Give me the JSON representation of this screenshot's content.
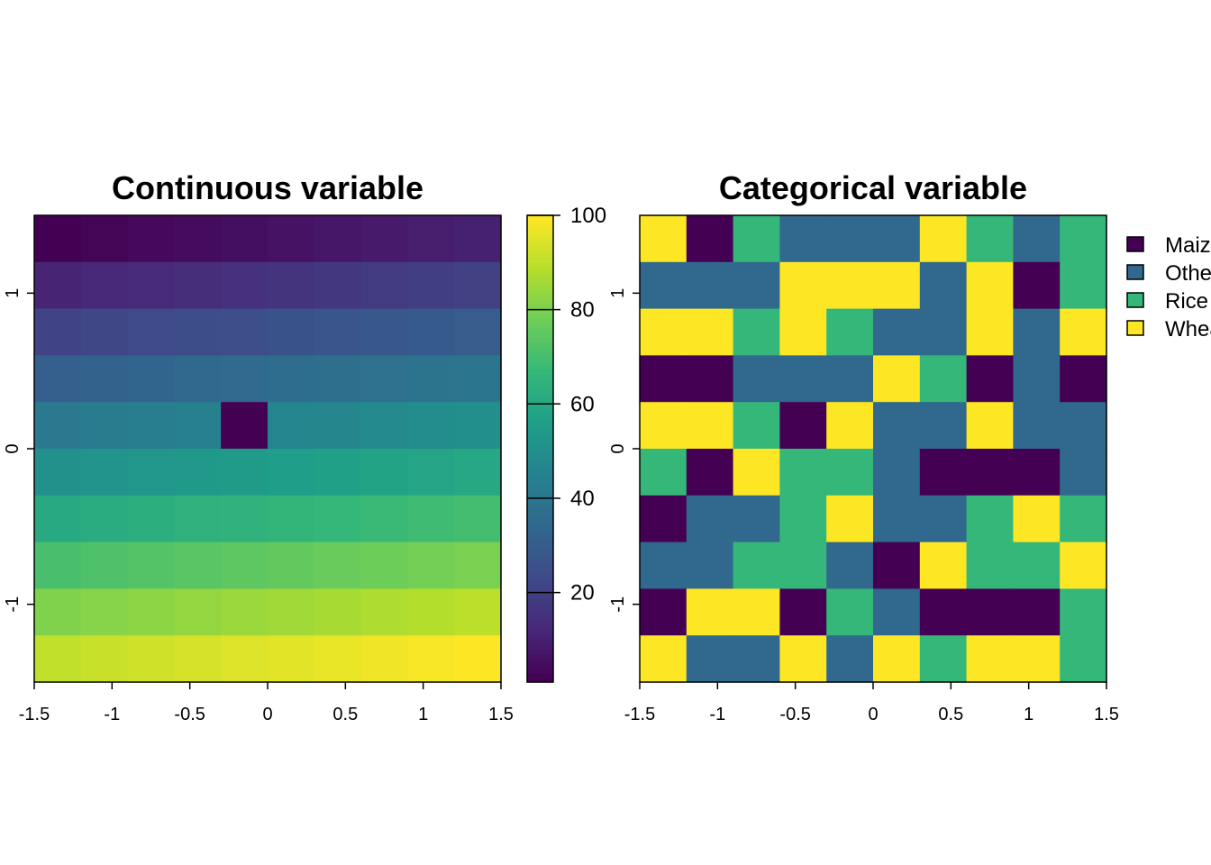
{
  "chart_data": [
    {
      "type": "heatmap",
      "title": "Continuous variable",
      "xlim": [
        -1.5,
        1.5
      ],
      "ylim": [
        -1.5,
        1.5
      ],
      "xticks": [
        "-1.5",
        "-1",
        "-0.5",
        "0",
        "0.5",
        "1",
        "1.5"
      ],
      "yticks": [
        "-1",
        "0",
        "1"
      ],
      "colorscale": "viridis",
      "color_range": [
        1,
        100
      ],
      "colorbar_ticks": [
        "20",
        "40",
        "60",
        "80",
        "100"
      ],
      "rows_top_to_bottom": [
        [
          1,
          2,
          3,
          4,
          5,
          6,
          7,
          8,
          9,
          10
        ],
        [
          11,
          12,
          13,
          14,
          15,
          16,
          17,
          18,
          19,
          20
        ],
        [
          21,
          22,
          23,
          24,
          25,
          26,
          27,
          28,
          29,
          30
        ],
        [
          31,
          32,
          33,
          34,
          35,
          36,
          37,
          38,
          39,
          40
        ],
        [
          41,
          42,
          43,
          44,
          1,
          46,
          47,
          48,
          49,
          50
        ],
        [
          51,
          52,
          53,
          54,
          55,
          56,
          57,
          58,
          59,
          60
        ],
        [
          61,
          62,
          63,
          64,
          65,
          66,
          67,
          68,
          69,
          70
        ],
        [
          71,
          72,
          73,
          74,
          75,
          76,
          77,
          78,
          79,
          80
        ],
        [
          81,
          82,
          83,
          84,
          85,
          86,
          87,
          88,
          89,
          90
        ],
        [
          91,
          92,
          93,
          94,
          95,
          96,
          97,
          98,
          99,
          100
        ]
      ]
    },
    {
      "type": "heatmap",
      "title": "Categorical variable",
      "xlim": [
        -1.5,
        1.5
      ],
      "ylim": [
        -1.5,
        1.5
      ],
      "xticks": [
        "-1.5",
        "-1",
        "-0.5",
        "0",
        "0.5",
        "1",
        "1.5"
      ],
      "yticks": [
        "-1",
        "0",
        "1"
      ],
      "legend_position": "right",
      "categories": [
        {
          "code": "M",
          "label": "Maize",
          "color": "#440154"
        },
        {
          "code": "O",
          "label": "Other",
          "color": "#31688E"
        },
        {
          "code": "R",
          "label": "Rice",
          "color": "#35B779"
        },
        {
          "code": "W",
          "label": "Wheat",
          "color": "#FDE725"
        }
      ],
      "rows_top_to_bottom": [
        [
          "W",
          "M",
          "R",
          "O",
          "O",
          "O",
          "W",
          "R",
          "O",
          "R"
        ],
        [
          "O",
          "O",
          "O",
          "W",
          "W",
          "W",
          "O",
          "W",
          "M",
          "R"
        ],
        [
          "W",
          "W",
          "R",
          "W",
          "R",
          "O",
          "O",
          "W",
          "O",
          "W"
        ],
        [
          "M",
          "M",
          "O",
          "O",
          "O",
          "W",
          "R",
          "M",
          "O",
          "M"
        ],
        [
          "W",
          "W",
          "R",
          "M",
          "W",
          "O",
          "O",
          "W",
          "O",
          "O"
        ],
        [
          "R",
          "M",
          "W",
          "R",
          "R",
          "O",
          "M",
          "M",
          "M",
          "O"
        ],
        [
          "M",
          "O",
          "O",
          "R",
          "W",
          "O",
          "O",
          "R",
          "W",
          "R"
        ],
        [
          "O",
          "O",
          "R",
          "R",
          "O",
          "M",
          "W",
          "R",
          "R",
          "W"
        ],
        [
          "M",
          "W",
          "W",
          "M",
          "R",
          "O",
          "M",
          "M",
          "M",
          "R"
        ],
        [
          "W",
          "O",
          "O",
          "W",
          "O",
          "W",
          "R",
          "W",
          "W",
          "R"
        ]
      ]
    }
  ]
}
